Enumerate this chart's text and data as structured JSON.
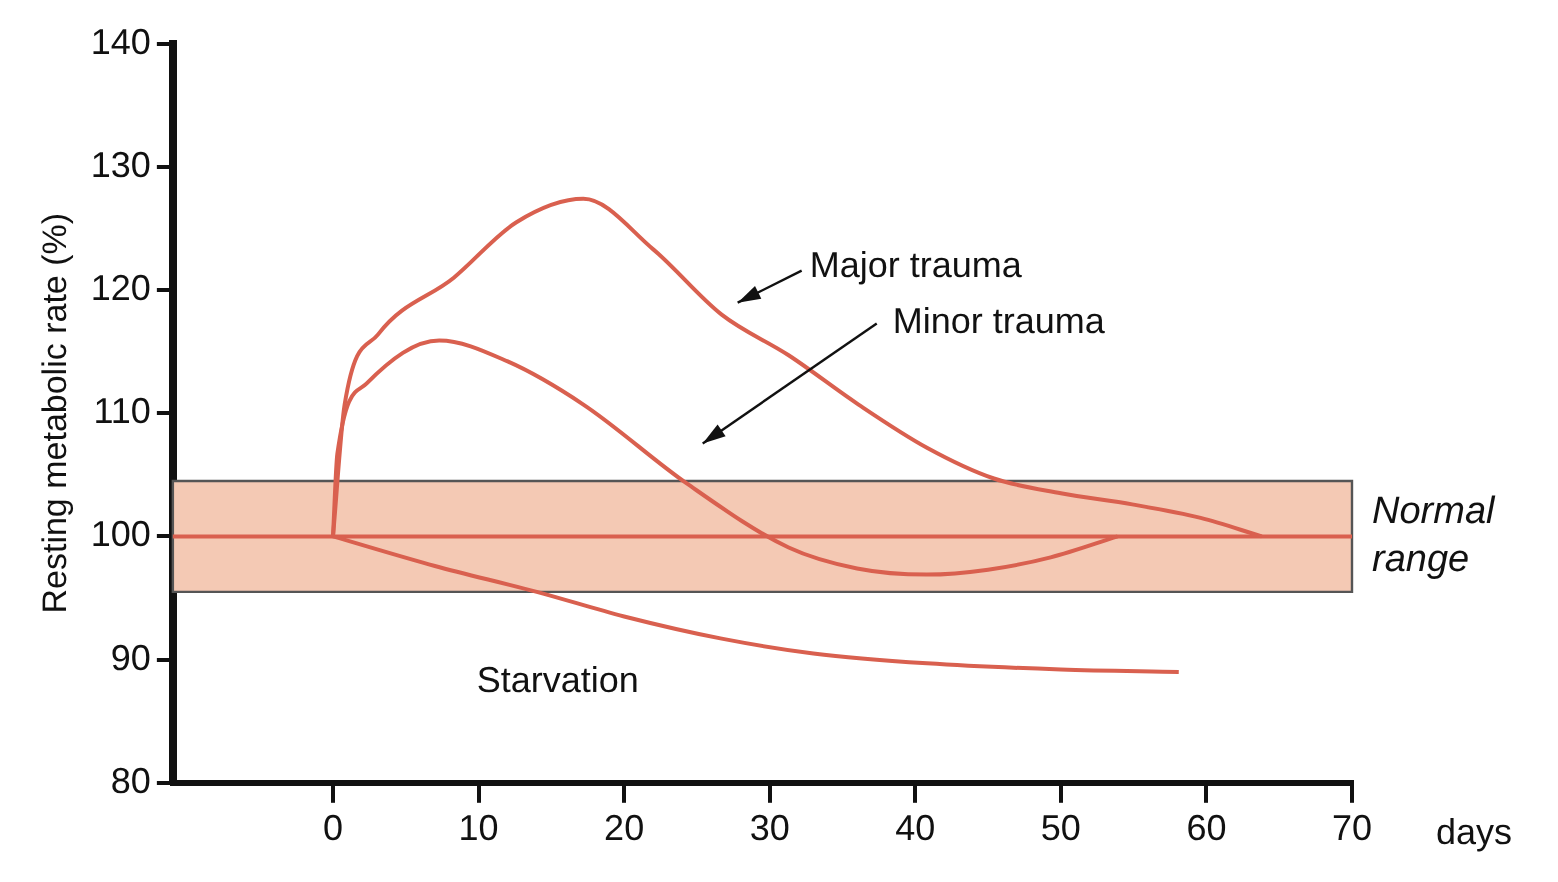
{
  "chart_data": {
    "type": "line",
    "xlabel": "days",
    "ylabel": "Resting metabolic rate (%)",
    "xlim": [
      -11,
      70
    ],
    "xticks": [
      0,
      10,
      20,
      30,
      40,
      50,
      60,
      70
    ],
    "ylim": [
      80,
      140
    ],
    "yticks": [
      80,
      90,
      100,
      110,
      120,
      130,
      140
    ],
    "grid": false,
    "legend": false,
    "marker": "none",
    "line_style": "solid",
    "series": [
      {
        "name": "Major trauma",
        "color": "#d9604f",
        "x": [
          0,
          0.8,
          3.1,
          8.3,
          12.6,
          17.2,
          22,
          26.7,
          31.3,
          36.1,
          40.8,
          45.4,
          50,
          54.9,
          59.6,
          63.8
        ],
        "values": [
          100,
          110.7,
          116.4,
          121,
          125.5,
          127.4,
          123.3,
          118,
          114.7,
          110.7,
          107.2,
          104.7,
          103.5,
          102.6,
          101.5,
          100
        ]
      },
      {
        "name": "Minor trauma",
        "color": "#d9604f",
        "x": [
          0,
          0.3,
          2.3,
          7.3,
          12,
          17.2,
          24.3,
          31.3,
          36,
          40.8,
          45,
          49.3,
          53.9
        ],
        "values": [
          100,
          106.7,
          112.4,
          115.9,
          114.2,
          110.7,
          104.3,
          99.1,
          97.4,
          96.9,
          97.3,
          98.3,
          100
        ]
      },
      {
        "name": "Starvation",
        "color": "#d9604f",
        "x": [
          0,
          7,
          14,
          20,
          26.7,
          33,
          40.8,
          50,
          58.1
        ],
        "values": [
          100,
          97.6,
          95.5,
          93.5,
          91.7,
          90.5,
          89.7,
          89.2,
          89
        ]
      }
    ],
    "bands": [
      {
        "axis": "y",
        "from": 95.5,
        "to": 104.5,
        "label": "Normal range",
        "color": "#f4c9b4"
      }
    ],
    "ref_lines": [
      {
        "axis": "y",
        "value": 100,
        "color": "#d9604f"
      }
    ]
  }
}
